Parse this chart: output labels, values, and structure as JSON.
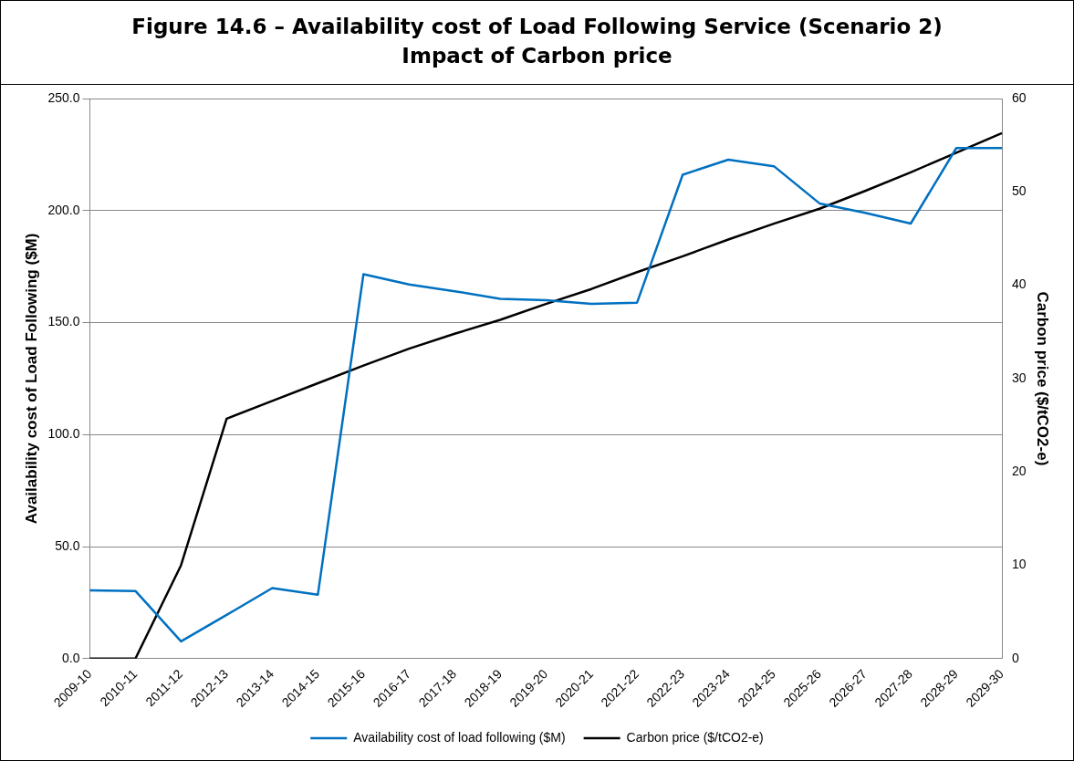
{
  "chart_data": {
    "type": "line",
    "title": "Figure 14.6 – Availability cost of Load Following Service (Scenario 2)",
    "subtitle": "Impact of Carbon price",
    "ylabel": "Availability cost of Load Following ($M)",
    "y2label": "Carbon price ($/tCO2-e)",
    "categories": [
      "2009-10",
      "2010-11",
      "2011-12",
      "2012-13",
      "2013-14",
      "2014-15",
      "2015-16",
      "2016-17",
      "2017-18",
      "2018-19",
      "2019-20",
      "2020-21",
      "2021-22",
      "2022-23",
      "2023-24",
      "2024-25",
      "2025-26",
      "2026-27",
      "2027-28",
      "2028-29",
      "2029-30"
    ],
    "series": [
      {
        "name": "Availability cost of load following ($M)",
        "color": "#0070c0",
        "values": [
          30.5,
          30.2,
          7.7,
          19.5,
          31.5,
          28.5,
          171.6,
          167,
          164,
          160.6,
          160,
          158.4,
          158.9,
          216,
          222.7,
          219.8,
          203.2,
          199,
          194.2,
          227.9,
          227.9
        ]
      },
      {
        "name": "Carbon price ($/tCO2-e)",
        "color": "#000000",
        "axis": "y2",
        "values": [
          0,
          0,
          10,
          25.7,
          27.6,
          29.5,
          31.4,
          33.2,
          34.8,
          36.3,
          38,
          39.6,
          41.4,
          43.1,
          44.9,
          46.6,
          48.2,
          50.1,
          52.1,
          54.2,
          56.3
        ]
      }
    ],
    "ylim": [
      0,
      250
    ],
    "yticks": [
      {
        "value": 0,
        "label": "0.0"
      },
      {
        "value": 50,
        "label": "50.0"
      },
      {
        "value": 100,
        "label": "100.0"
      },
      {
        "value": 150,
        "label": "150.0"
      },
      {
        "value": 200,
        "label": "200.0"
      },
      {
        "value": 250,
        "label": "250.0"
      }
    ],
    "y2lim": [
      0,
      60
    ],
    "y2ticks": [
      0,
      10,
      20,
      30,
      40,
      50,
      60
    ],
    "grid": "y",
    "legend": "bottom",
    "marker": "none",
    "line_style": "solid"
  }
}
